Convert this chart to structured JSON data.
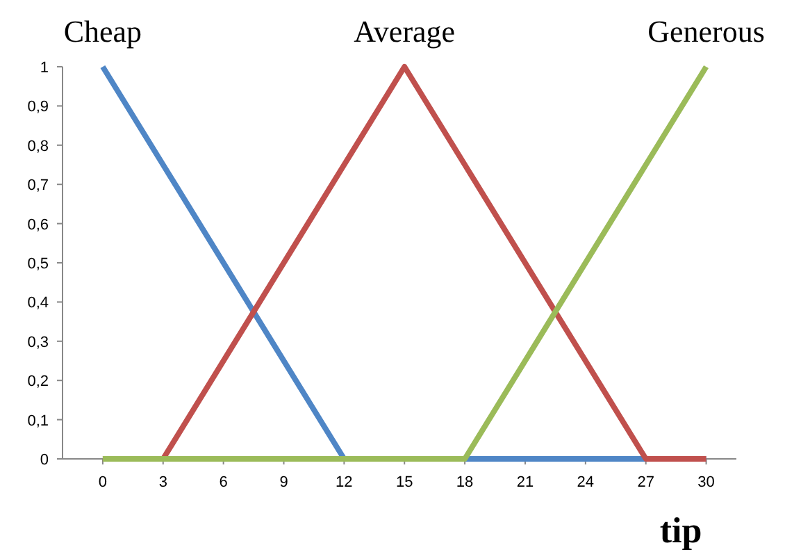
{
  "chart_data": {
    "type": "line",
    "xlabel": "tip",
    "x": [
      0,
      3,
      12,
      15,
      18,
      27,
      30
    ],
    "series": [
      {
        "name": "Cheap",
        "color": "#4f86c6",
        "values": [
          1,
          0.75,
          0,
          0,
          0,
          0,
          0
        ]
      },
      {
        "name": "Average",
        "color": "#c0504d",
        "values": [
          0,
          0,
          0.75,
          1,
          0.75,
          0,
          0
        ]
      },
      {
        "name": "Generous",
        "color": "#9bbb59",
        "values": [
          0,
          0,
          0,
          0,
          0,
          0.75,
          1
        ]
      }
    ],
    "xlim": [
      -2,
      31.5
    ],
    "xticks": [
      0,
      3,
      6,
      9,
      12,
      15,
      18,
      21,
      24,
      27,
      30
    ],
    "ylim": [
      0,
      1
    ],
    "yticks": [
      0,
      {
        "value": 0.1,
        "label": "0,1"
      },
      {
        "value": 0.2,
        "label": "0,2"
      },
      {
        "value": 0.3,
        "label": "0,3"
      },
      {
        "value": 0.4,
        "label": "0,4"
      },
      {
        "value": 0.5,
        "label": "0,5"
      },
      {
        "value": 0.6,
        "label": "0,6"
      },
      {
        "value": 0.7,
        "label": "0,7"
      },
      {
        "value": 0.8,
        "label": "0,8"
      },
      {
        "value": 0.9,
        "label": "0,9"
      },
      1
    ],
    "grid": false,
    "marker": "none",
    "line_style": "solid"
  }
}
